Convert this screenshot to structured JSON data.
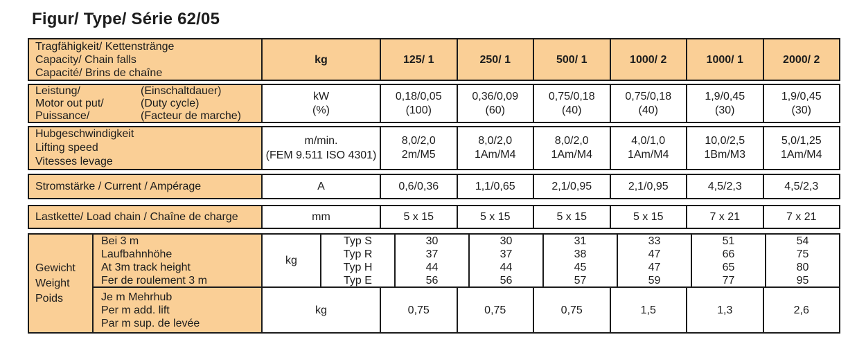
{
  "title": "Figur/ Type/ Série 62/05",
  "colors": {
    "cell_fill": "#FACF96",
    "border": "#1B1B1B",
    "text": "#1D1D1D",
    "page_bg": "#FFFFFF"
  },
  "table": {
    "header": {
      "label_lines": [
        "Tragfähigkeit/ Kettenstränge",
        "Capacity/ Chain falls",
        "Capacité/ Brins de chaîne"
      ],
      "unit": "kg",
      "models": [
        "125/ 1",
        "250/ 1",
        "500/ 1",
        "1000/ 2",
        "1000/ 1",
        "2000/ 2"
      ]
    },
    "motor": {
      "label_terms": [
        "Leistung/",
        "Motor out put/",
        "Puissance/"
      ],
      "label_notes": [
        "(Einschaltdauer)",
        "(Duty cycle)",
        "(Facteur de marche)"
      ],
      "unit_lines": [
        "kW",
        "(%)"
      ],
      "values": [
        [
          "0,18/0,05",
          "(100)"
        ],
        [
          "0,36/0,09",
          "(60)"
        ],
        [
          "0,75/0,18",
          "(40)"
        ],
        [
          "0,75/0,18",
          "(40)"
        ],
        [
          "1,9/0,45",
          "(30)"
        ],
        [
          "1,9/0,45",
          "(30)"
        ]
      ]
    },
    "speed": {
      "label_lines": [
        "Hubgeschwindigkeit",
        "Lifting speed",
        "Vitesses levage"
      ],
      "unit_lines": [
        "m/min.",
        "(FEM 9.511 ISO 4301)"
      ],
      "values": [
        [
          "8,0/2,0",
          "2m/M5"
        ],
        [
          "8,0/2,0",
          "1Am/M4"
        ],
        [
          "8,0/2,0",
          "1Am/M4"
        ],
        [
          "4,0/1,0",
          "1Am/M4"
        ],
        [
          "10,0/2,5",
          "1Bm/M3"
        ],
        [
          "5,0/1,25",
          "1Am/M4"
        ]
      ]
    },
    "current": {
      "label": "Stromstärke / Current / Ampérage",
      "unit": "A",
      "values": [
        "0,6/0,36",
        "1,1/0,65",
        "2,1/0,95",
        "2,1/0,95",
        "4,5/2,3",
        "4,5/2,3"
      ]
    },
    "chain": {
      "label": "Lastkette/ Load chain / Chaîne de charge",
      "unit": "mm",
      "values": [
        "5 x 15",
        "5 x 15",
        "5 x 15",
        "5 x 15",
        "7 x 21",
        "7 x 21"
      ]
    },
    "weight": {
      "group_lines": [
        "Gewicht",
        "Weight",
        "Poids"
      ],
      "at3m": {
        "label_lines": [
          "Bei 3 m",
          "Laufbahnhöhe",
          "At 3m track height",
          "Fer de roulement 3 m"
        ],
        "unit": "kg",
        "types": [
          "Typ S",
          "Typ R",
          "Typ H",
          "Typ E"
        ],
        "values": [
          [
            "30",
            "37",
            "44",
            "56"
          ],
          [
            "30",
            "37",
            "44",
            "56"
          ],
          [
            "31",
            "38",
            "45",
            "57"
          ],
          [
            "33",
            "47",
            "47",
            "59"
          ],
          [
            "51",
            "66",
            "65",
            "77"
          ],
          [
            "54",
            "75",
            "80",
            "95"
          ]
        ]
      },
      "per_m": {
        "label_lines": [
          "Je m Mehrhub",
          "Per m add. lift",
          "Par m sup. de levée"
        ],
        "unit": "kg",
        "values": [
          "0,75",
          "0,75",
          "0,75",
          "1,5",
          "1,3",
          "2,6"
        ]
      }
    }
  }
}
